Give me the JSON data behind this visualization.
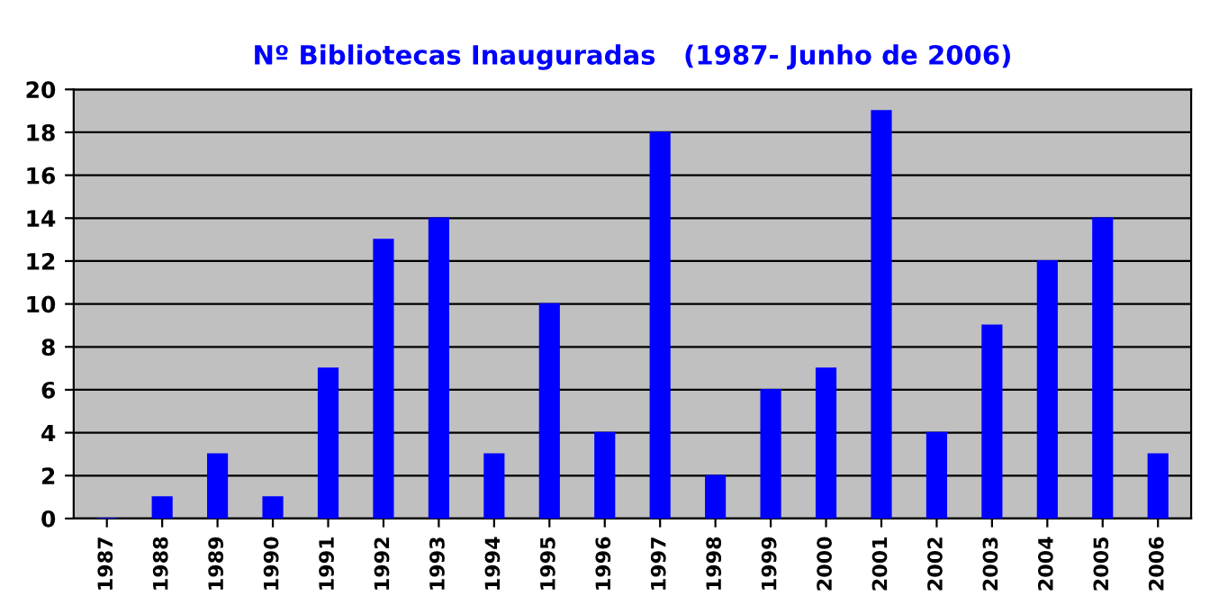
{
  "chart_data": {
    "type": "bar",
    "title": "Nº Bibliotecas Inauguradas   (1987- Junho de 2006)",
    "categories": [
      "1987",
      "1988",
      "1989",
      "1990",
      "1991",
      "1992",
      "1993",
      "1994",
      "1995",
      "1996",
      "1997",
      "1998",
      "1999",
      "2000",
      "2001",
      "2002",
      "2003",
      "2004",
      "2005",
      "2006"
    ],
    "values": [
      0,
      1,
      3,
      1,
      7,
      13,
      14,
      3,
      10,
      4,
      18,
      2,
      6,
      7,
      19,
      4,
      9,
      12,
      14,
      3
    ],
    "color": "#0000ff",
    "ylim": [
      0,
      20
    ],
    "yticks": [
      0,
      2,
      4,
      6,
      8,
      10,
      12,
      14,
      16,
      18,
      20
    ],
    "grid": "y",
    "legend": false
  }
}
